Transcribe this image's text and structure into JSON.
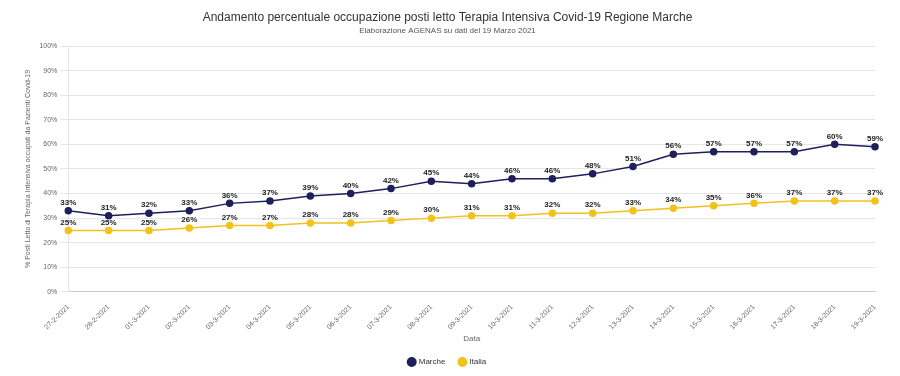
{
  "chart_data": {
    "type": "line",
    "title": "Andamento percentuale occupazione posti letto Terapia Intensiva Covid-19 Regione Marche",
    "subtitle": "Elaborazione AGENAS su dati del 19 Marzo 2021",
    "x_label": "Data",
    "y_label": "% Posti Letto di Terapia Intensiva occupati da Pazienti Covid-19",
    "categories": [
      "27-2-2021",
      "28-2-2021",
      "01-3-2021",
      "02-3-2021",
      "03-3-2021",
      "04-3-2021",
      "05-3-2021",
      "06-3-2021",
      "07-3-2021",
      "08-3-2021",
      "09-3-2021",
      "10-3-2021",
      "11-3-2021",
      "12-3-2021",
      "13-3-2021",
      "14-3-2021",
      "15-3-2021",
      "16-3-2021",
      "17-3-2021",
      "18-3-2021",
      "19-3-2021"
    ],
    "series": [
      {
        "name": "Marche",
        "color": "#1f1f5c",
        "values": [
          33,
          31,
          32,
          33,
          36,
          37,
          39,
          40,
          42,
          45,
          44,
          46,
          46,
          48,
          51,
          56,
          57,
          57,
          57,
          60,
          59
        ],
        "value_labels": [
          "33%",
          "31%",
          "32%",
          "33%",
          "36%",
          "37%",
          "39%",
          "40%",
          "42%",
          "45%",
          "44%",
          "46%",
          "46%",
          "48%",
          "51%",
          "56%",
          "57%",
          "57%",
          "57%",
          "60%",
          "59%"
        ]
      },
      {
        "name": "Italia",
        "color": "#f2c21b",
        "values": [
          25,
          25,
          25,
          26,
          27,
          27,
          28,
          28,
          29,
          30,
          31,
          31,
          32,
          32,
          33,
          34,
          35,
          36,
          37,
          37,
          37
        ],
        "value_labels": [
          "25%",
          "25%",
          "25%",
          "26%",
          "27%",
          "27%",
          "28%",
          "28%",
          "29%",
          "30%",
          "31%",
          "31%",
          "32%",
          "32%",
          "33%",
          "34%",
          "35%",
          "36%",
          "37%",
          "37%",
          "37%"
        ]
      }
    ],
    "ylim": [
      0,
      100
    ],
    "yticks": [
      {
        "value": 0,
        "label": "0%"
      },
      {
        "value": 10,
        "label": "10%"
      },
      {
        "value": 20,
        "label": "20%"
      },
      {
        "value": 30,
        "label": "30%"
      },
      {
        "value": 40,
        "label": "40%"
      },
      {
        "value": 50,
        "label": "50%"
      },
      {
        "value": 60,
        "label": "60%"
      },
      {
        "value": 70,
        "label": "70%"
      },
      {
        "value": 80,
        "label": "80%"
      },
      {
        "value": 90,
        "label": "90%"
      },
      {
        "value": 100,
        "label": "100%"
      }
    ],
    "grid": true,
    "legend": "bottom",
    "data_labels": true,
    "marker": "circle"
  }
}
